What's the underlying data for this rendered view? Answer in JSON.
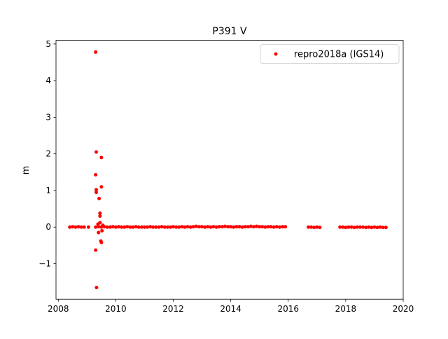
{
  "chart_data": {
    "type": "scatter",
    "title": "P391 V",
    "y_label": "m",
    "xlim": [
      2007.92,
      2020.0
    ],
    "ylim": [
      -1.97,
      5.1
    ],
    "xticks": [
      2008,
      2010,
      2012,
      2014,
      2016,
      2018,
      2020
    ],
    "yticks": [
      -1,
      0,
      1,
      2,
      3,
      4,
      5
    ],
    "legend": "upper right",
    "series": [
      {
        "name": "repro2018a (IGS14)",
        "color": "#ff0000",
        "x": [
          2008.4,
          2008.5,
          2008.6,
          2008.7,
          2008.8,
          2008.9,
          2009.05,
          2009.3,
          2009.32,
          2009.3,
          2009.32,
          2009.32,
          2009.42,
          2009.45,
          2009.45,
          2009.5,
          2009.5,
          2009.3,
          2009.33,
          2009.48,
          2009.5,
          2009.4,
          2009.45,
          2009.38,
          2009.52,
          2009.55,
          2009.3,
          2009.4,
          2009.5,
          2009.6,
          2009.7,
          2009.8,
          2009.9,
          2010.0,
          2010.1,
          2010.2,
          2010.3,
          2010.4,
          2010.5,
          2010.6,
          2010.7,
          2010.8,
          2010.9,
          2011.0,
          2011.1,
          2011.2,
          2011.3,
          2011.4,
          2011.5,
          2011.6,
          2011.7,
          2011.8,
          2011.9,
          2012.0,
          2012.1,
          2012.2,
          2012.3,
          2012.4,
          2012.5,
          2012.6,
          2012.7,
          2012.8,
          2012.9,
          2013.0,
          2013.1,
          2013.2,
          2013.3,
          2013.4,
          2013.5,
          2013.6,
          2013.7,
          2013.8,
          2013.9,
          2014.0,
          2014.1,
          2014.2,
          2014.3,
          2014.4,
          2014.5,
          2014.6,
          2014.7,
          2014.8,
          2014.9,
          2015.0,
          2015.1,
          2015.2,
          2015.3,
          2015.4,
          2015.5,
          2015.6,
          2015.7,
          2015.8,
          2015.9,
          2016.7,
          2016.8,
          2016.9,
          2017.0,
          2017.1,
          2017.8,
          2017.9,
          2018.0,
          2018.1,
          2018.2,
          2018.3,
          2018.4,
          2018.5,
          2018.6,
          2018.7,
          2018.8,
          2018.9,
          2019.0,
          2019.1,
          2019.2,
          2019.3,
          2019.4
        ],
        "values": [
          0,
          0.01,
          0,
          0.01,
          0,
          0,
          0,
          4.78,
          2.05,
          1.43,
          1.02,
          0.95,
          0.78,
          0.38,
          0.3,
          1.9,
          1.1,
          -0.63,
          -1.65,
          -0.38,
          -0.42,
          -0.15,
          0.12,
          0.08,
          -0.1,
          0.05,
          0,
          0.01,
          0,
          0.01,
          0,
          0,
          0.01,
          0,
          0.01,
          0,
          0,
          0.01,
          0,
          0,
          0.01,
          0,
          0,
          0,
          0,
          0.01,
          0,
          0,
          0,
          0.01,
          0,
          0,
          0,
          0.01,
          0,
          0,
          0.01,
          0,
          0.01,
          0,
          0.01,
          0.02,
          0.01,
          0.01,
          0,
          0.01,
          0,
          0.01,
          0,
          0.01,
          0.01,
          0.02,
          0.01,
          0.01,
          0,
          0.01,
          0.01,
          0,
          0.01,
          0.01,
          0.02,
          0.01,
          0.02,
          0.01,
          0.01,
          0,
          0.01,
          0.01,
          0,
          0.01,
          0,
          0.01,
          0.01,
          0,
          0,
          -0.01,
          0,
          -0.01,
          0,
          0,
          -0.01,
          0,
          0,
          -0.01,
          0,
          0,
          0,
          -0.01,
          0,
          -0.01,
          0,
          -0.01,
          0,
          -0.01,
          -0.01
        ]
      }
    ]
  }
}
